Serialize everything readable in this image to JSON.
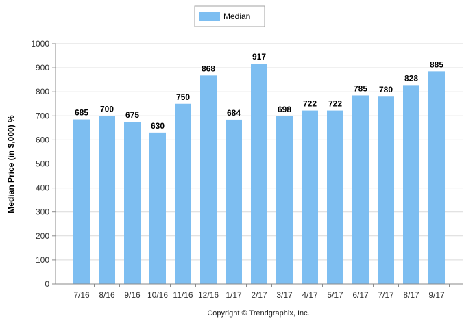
{
  "chart_data": {
    "type": "bar",
    "categories": [
      "7/16",
      "8/16",
      "9/16",
      "10/16",
      "11/16",
      "12/16",
      "1/17",
      "2/17",
      "3/17",
      "4/17",
      "5/17",
      "6/17",
      "7/17",
      "8/17",
      "9/17"
    ],
    "series": [
      {
        "name": "Median",
        "values": [
          685,
          700,
          675,
          630,
          750,
          868,
          684,
          917,
          698,
          722,
          722,
          785,
          780,
          828,
          885
        ]
      }
    ],
    "ylabel": "Median Price (in $,000) %",
    "ylim": [
      0,
      1000
    ],
    "yticks": [
      0,
      100,
      200,
      300,
      400,
      500,
      600,
      700,
      800,
      900,
      1000
    ],
    "grid": true,
    "legend_position": "top-center",
    "bar_color": "#7dbef1",
    "footer": "Copyright © Trendgraphix, Inc."
  }
}
